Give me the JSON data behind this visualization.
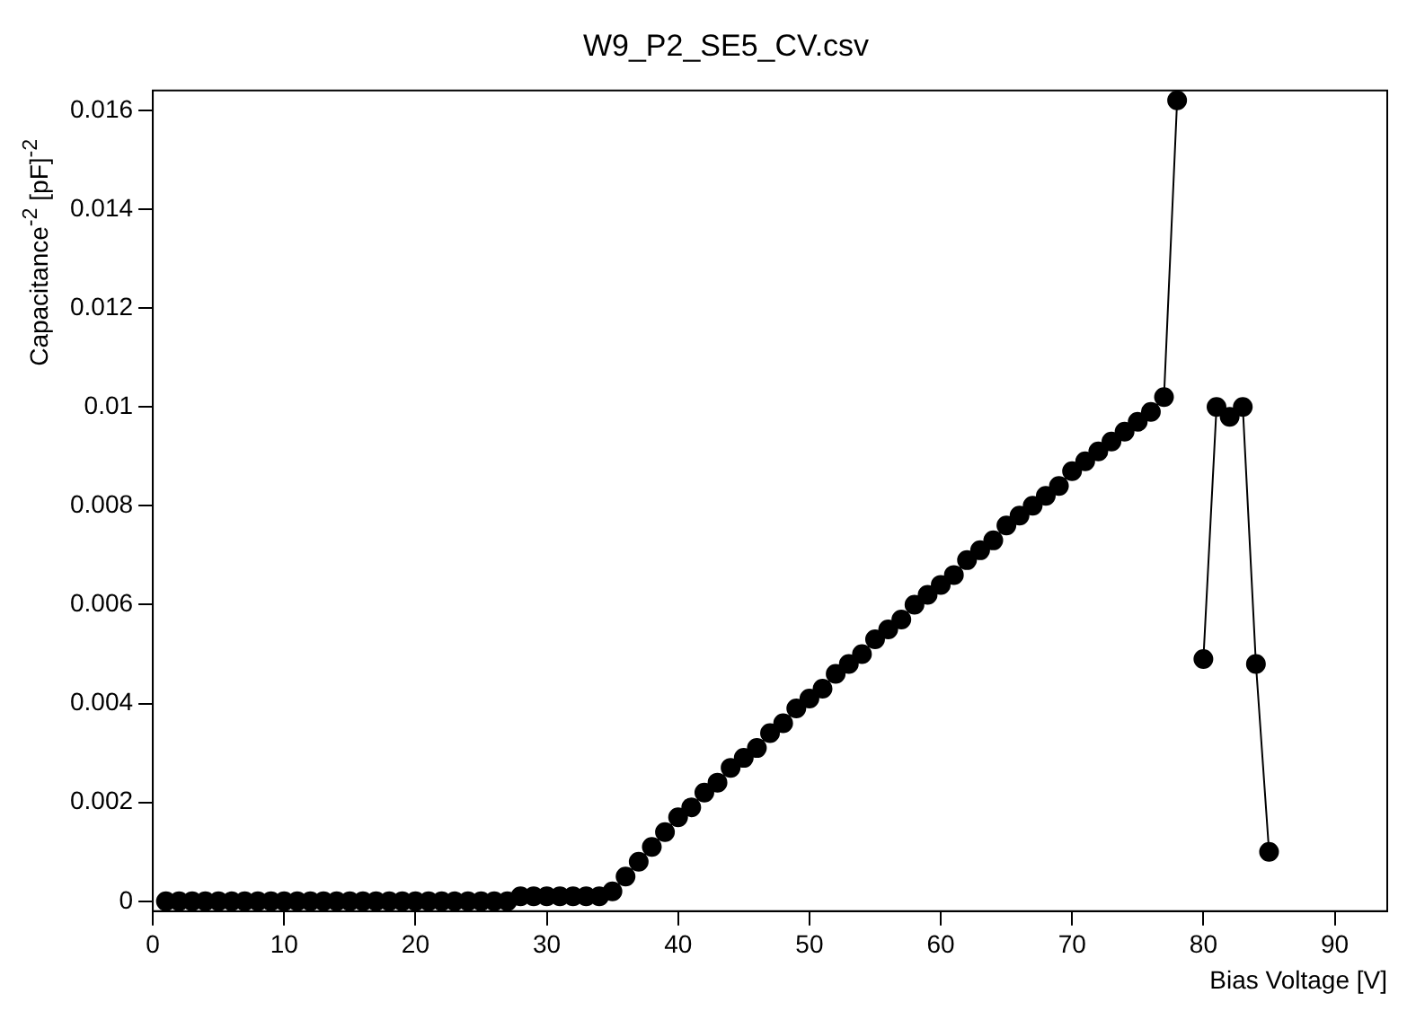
{
  "chart_data": {
    "type": "line",
    "title": "W9_P2_SE5_CV.csv",
    "xlabel": "Bias Voltage [V]",
    "ylabel": "Capacitance$^{-2}$ [pF]$^{-2}$",
    "x": [
      1,
      2,
      3,
      4,
      5,
      6,
      7,
      8,
      9,
      10,
      11,
      12,
      13,
      14,
      15,
      16,
      17,
      18,
      19,
      20,
      21,
      22,
      23,
      24,
      25,
      26,
      27,
      28,
      29,
      30,
      31,
      32,
      33,
      34,
      35,
      36,
      37,
      38,
      39,
      40,
      41,
      42,
      43,
      44,
      45,
      46,
      47,
      48,
      49,
      50,
      51,
      52,
      53,
      54,
      55,
      56,
      57,
      58,
      59,
      60,
      61,
      62,
      63,
      64,
      65,
      66,
      67,
      68,
      69,
      70,
      71,
      72,
      73,
      74,
      75,
      76,
      77,
      78,
      79,
      80,
      81,
      82,
      83,
      84,
      85
    ],
    "series": [
      {
        "color": "#000000",
        "values": [
          0,
          0,
          0,
          0,
          0,
          0,
          0,
          0,
          0,
          0,
          0,
          0,
          0,
          0,
          0,
          0,
          0,
          0,
          0,
          0,
          0,
          0,
          0,
          0,
          0,
          0,
          0,
          0.0001,
          0.0001,
          0.0001,
          0.0001,
          0.0001,
          0.0001,
          0.0001,
          0.0002,
          0.0005,
          0.0008,
          0.0011,
          0.0014,
          0.0017,
          0.0019,
          0.0022,
          0.0024,
          0.0027,
          0.0029,
          0.0031,
          0.0034,
          0.0036,
          0.0039,
          0.0041,
          0.0043,
          0.0046,
          0.0048,
          0.005,
          0.0053,
          0.0055,
          0.0057,
          0.006,
          0.0062,
          0.0064,
          0.0066,
          0.0069,
          0.0071,
          0.0073,
          0.0076,
          0.0078,
          0.008,
          0.0082,
          0.0084,
          0.0087,
          0.0089,
          0.0091,
          0.0093,
          0.0095,
          0.0097,
          0.0099,
          0.0102,
          0.0162,
          null,
          0.0049,
          0.01,
          0.0098,
          0.01,
          0.0048,
          0.001
        ]
      }
    ],
    "xlim": [
      0,
      94
    ],
    "xticks": [
      0,
      10,
      20,
      30,
      40,
      50,
      60,
      70,
      80,
      90
    ],
    "ylim": [
      -0.0002,
      0.0164
    ],
    "yticks": [
      0,
      0.002,
      0.004,
      0.006,
      0.008,
      0.01,
      0.012,
      0.014,
      0.016
    ],
    "legend": false,
    "marker": "circle",
    "line_style": "solid"
  }
}
